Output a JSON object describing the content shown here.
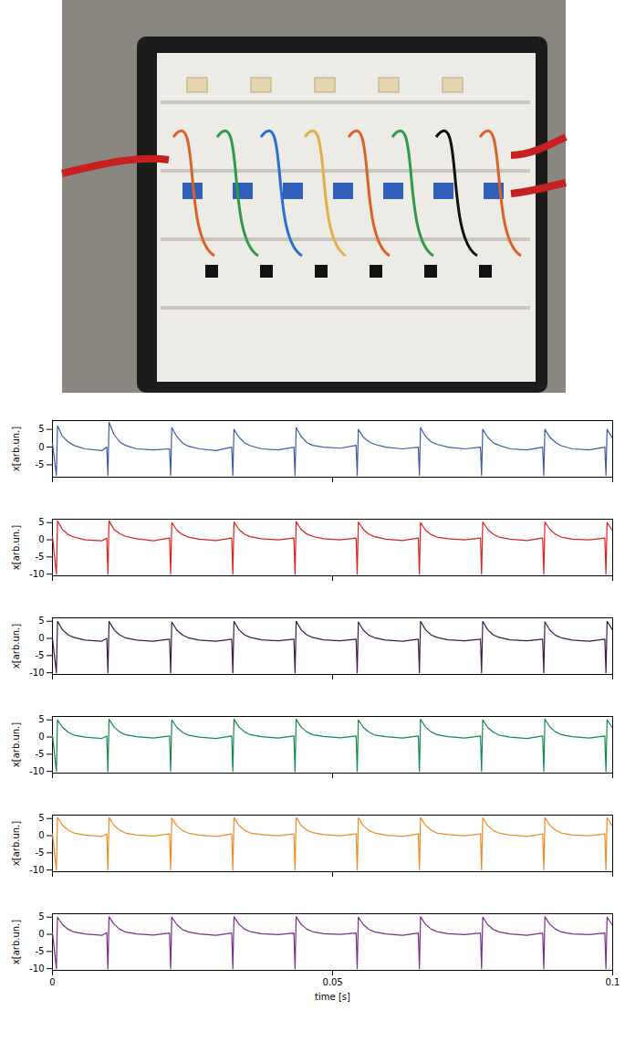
{
  "chart_data": [
    {
      "type": "line",
      "ylabel": "x[arb.un.]",
      "tick_labels": "y",
      "xlim": [
        0,
        0.1
      ],
      "xticks": [
        0,
        0.05,
        0.1
      ],
      "ylim": [
        -8.5,
        7.5
      ],
      "yticks": [
        -5,
        0,
        5
      ],
      "x": [
        0,
        0.0007,
        0.0009,
        0.0018,
        0.0028,
        0.0038,
        0.0058,
        0.0088,
        0.0097,
        0.0099,
        0.0101,
        0.011,
        0.012,
        0.013,
        0.015,
        0.018,
        0.0209,
        0.0211,
        0.0213,
        0.0222,
        0.0232,
        0.0242,
        0.0262,
        0.0292,
        0.032,
        0.0322,
        0.0324,
        0.0333,
        0.0343,
        0.0353,
        0.0373,
        0.0403,
        0.0431,
        0.0433,
        0.0435,
        0.0444,
        0.0454,
        0.0464,
        0.0484,
        0.0514,
        0.0542,
        0.0544,
        0.0546,
        0.0555,
        0.0565,
        0.0575,
        0.0595,
        0.0625,
        0.0653,
        0.0655,
        0.0657,
        0.0666,
        0.0676,
        0.0686,
        0.0706,
        0.0736,
        0.0764,
        0.0766,
        0.0768,
        0.0777,
        0.0787,
        0.0797,
        0.0817,
        0.0847,
        0.0875,
        0.0877,
        0.0879,
        0.0888,
        0.0898,
        0.0908,
        0.0928,
        0.0958,
        0.0986,
        0.0988,
        0.099,
        0.1
      ],
      "series": [
        {
          "color": "#3b5ba9",
          "values": [
            1,
            -8,
            6,
            3,
            1.5,
            0.5,
            -0.5,
            -1,
            0,
            -8,
            7,
            3.5,
            1.5,
            0.5,
            -0.5,
            -0.8,
            -0.5,
            -8,
            5.5,
            3,
            1.2,
            0.3,
            -0.5,
            -1,
            0,
            -8,
            5,
            2.8,
            1.2,
            0.4,
            -0.5,
            -0.8,
            0,
            -8,
            5.5,
            3,
            1.3,
            0.5,
            0,
            -0.3,
            0.5,
            -8,
            5,
            2.8,
            1.5,
            0.8,
            0,
            -0.5,
            0,
            -8,
            5.5,
            3,
            1.5,
            0.8,
            0,
            -0.5,
            0,
            -8,
            5,
            2.8,
            1.2,
            0.5,
            -0.5,
            -0.8,
            0,
            -8,
            5,
            2.8,
            1.3,
            0.4,
            -0.5,
            -0.8,
            0,
            -8,
            5,
            2.5
          ]
        }
      ]
    },
    {
      "type": "line",
      "ylabel": "x[arb.un.]",
      "tick_labels": "y",
      "xlim": [
        0,
        0.1
      ],
      "xticks": [
        0,
        0.05,
        0.1
      ],
      "ylim": [
        -10.5,
        6
      ],
      "yticks": [
        -10,
        -5,
        0,
        5
      ],
      "x": [
        0,
        0.0007,
        0.0009,
        0.0018,
        0.0028,
        0.0038,
        0.0058,
        0.0088,
        0.0097,
        0.0099,
        0.0101,
        0.011,
        0.012,
        0.013,
        0.015,
        0.018,
        0.0209,
        0.0211,
        0.0213,
        0.0222,
        0.0232,
        0.0242,
        0.0262,
        0.0292,
        0.032,
        0.0322,
        0.0324,
        0.0333,
        0.0343,
        0.0353,
        0.0373,
        0.0403,
        0.0431,
        0.0433,
        0.0435,
        0.0444,
        0.0454,
        0.0464,
        0.0484,
        0.0514,
        0.0542,
        0.0544,
        0.0546,
        0.0555,
        0.0565,
        0.0575,
        0.0595,
        0.0625,
        0.0653,
        0.0655,
        0.0657,
        0.0666,
        0.0676,
        0.0686,
        0.0706,
        0.0736,
        0.0764,
        0.0766,
        0.0768,
        0.0777,
        0.0787,
        0.0797,
        0.0817,
        0.0847,
        0.0875,
        0.0877,
        0.0879,
        0.0888,
        0.0898,
        0.0908,
        0.0928,
        0.0958,
        0.0986,
        0.0988,
        0.099,
        0.1
      ],
      "series": [
        {
          "color": "#e0201b",
          "values": [
            1,
            -10,
            5.5,
            3,
            1.5,
            0.8,
            0,
            -0.3,
            0.5,
            -10,
            5.5,
            3,
            1.8,
            1,
            0.3,
            -0.3,
            0.5,
            -10,
            5,
            2.8,
            1.5,
            0.8,
            0.2,
            -0.2,
            0.5,
            -10,
            5.2,
            3,
            1.6,
            0.9,
            0.3,
            0,
            0.5,
            -10,
            5.3,
            3,
            1.7,
            1,
            0.3,
            0,
            0.5,
            -10,
            5.2,
            3,
            1.6,
            0.9,
            0.2,
            -0.2,
            0.5,
            -10,
            5,
            2.8,
            1.5,
            0.8,
            0.3,
            0,
            0.5,
            -10,
            5.2,
            3,
            1.6,
            0.8,
            0.2,
            -0.2,
            0.5,
            -10,
            5.2,
            3,
            1.6,
            0.8,
            0.2,
            0,
            0.5,
            -10,
            5,
            2.6
          ]
        }
      ]
    },
    {
      "type": "line",
      "ylabel": "x[arb.un.]",
      "tick_labels": "y",
      "xlim": [
        0,
        0.1
      ],
      "xticks": [
        0,
        0.05,
        0.1
      ],
      "ylim": [
        -10.5,
        6
      ],
      "yticks": [
        -10,
        -5,
        0,
        5
      ],
      "x": [
        0,
        0.0007,
        0.0009,
        0.0018,
        0.0028,
        0.0038,
        0.0058,
        0.0088,
        0.0097,
        0.0099,
        0.0101,
        0.011,
        0.012,
        0.013,
        0.015,
        0.018,
        0.0209,
        0.0211,
        0.0213,
        0.0222,
        0.0232,
        0.0242,
        0.0262,
        0.0292,
        0.032,
        0.0322,
        0.0324,
        0.0333,
        0.0343,
        0.0353,
        0.0373,
        0.0403,
        0.0431,
        0.0433,
        0.0435,
        0.0444,
        0.0454,
        0.0464,
        0.0484,
        0.0514,
        0.0542,
        0.0544,
        0.0546,
        0.0555,
        0.0565,
        0.0575,
        0.0595,
        0.0625,
        0.0653,
        0.0655,
        0.0657,
        0.0666,
        0.0676,
        0.0686,
        0.0706,
        0.0736,
        0.0764,
        0.0766,
        0.0768,
        0.0777,
        0.0787,
        0.0797,
        0.0817,
        0.0847,
        0.0875,
        0.0877,
        0.0879,
        0.0888,
        0.0898,
        0.0908,
        0.0928,
        0.0958,
        0.0986,
        0.0988,
        0.099,
        0.1
      ],
      "series": [
        {
          "color": "#3d1a4a",
          "values": [
            0,
            -10,
            5,
            2.5,
            1,
            0.3,
            -0.5,
            -0.8,
            0,
            -10,
            5,
            2.5,
            1,
            0.2,
            -0.5,
            -0.8,
            -0.2,
            -10,
            4.8,
            2.4,
            1,
            0.2,
            -0.5,
            -0.8,
            -0.2,
            -10,
            5,
            2.5,
            1,
            0.3,
            -0.4,
            -0.7,
            -0.2,
            -10,
            5,
            2.5,
            1,
            0.3,
            -0.4,
            -0.7,
            -0.2,
            -10,
            4.8,
            2.4,
            0.9,
            0.2,
            -0.5,
            -0.8,
            -0.2,
            -10,
            5,
            2.5,
            1,
            0.3,
            -0.4,
            -0.7,
            -0.2,
            -10,
            5,
            2.5,
            1,
            0.3,
            -0.4,
            -0.7,
            -0.2,
            -10,
            4.8,
            2.4,
            0.9,
            0.2,
            -0.5,
            -0.8,
            -0.2,
            -10,
            5,
            2.4
          ]
        }
      ]
    },
    {
      "type": "line",
      "ylabel": "x[arb.un.]",
      "tick_labels": "y",
      "xlim": [
        0,
        0.1
      ],
      "xticks": [
        0,
        0.05,
        0.1
      ],
      "ylim": [
        -10.5,
        6
      ],
      "yticks": [
        -10,
        -5,
        0,
        5
      ],
      "x": [
        0,
        0.0007,
        0.0009,
        0.0018,
        0.0028,
        0.0038,
        0.0058,
        0.0088,
        0.0097,
        0.0099,
        0.0101,
        0.011,
        0.012,
        0.013,
        0.015,
        0.018,
        0.0209,
        0.0211,
        0.0213,
        0.0222,
        0.0232,
        0.0242,
        0.0262,
        0.0292,
        0.032,
        0.0322,
        0.0324,
        0.0333,
        0.0343,
        0.0353,
        0.0373,
        0.0403,
        0.0431,
        0.0433,
        0.0435,
        0.0444,
        0.0454,
        0.0464,
        0.0484,
        0.0514,
        0.0542,
        0.0544,
        0.0546,
        0.0555,
        0.0565,
        0.0575,
        0.0595,
        0.0625,
        0.0653,
        0.0655,
        0.0657,
        0.0666,
        0.0676,
        0.0686,
        0.0706,
        0.0736,
        0.0764,
        0.0766,
        0.0768,
        0.0777,
        0.0787,
        0.0797,
        0.0817,
        0.0847,
        0.0875,
        0.0877,
        0.0879,
        0.0888,
        0.0898,
        0.0908,
        0.0928,
        0.0958,
        0.0986,
        0.0988,
        0.099,
        0.1
      ],
      "series": [
        {
          "color": "#138a4a",
          "values": [
            0.5,
            -10,
            5,
            2.8,
            1.4,
            0.6,
            0,
            -0.4,
            0.3,
            -10,
            5.2,
            2.9,
            1.5,
            0.7,
            0.1,
            -0.3,
            0.3,
            -10,
            5,
            2.8,
            1.4,
            0.6,
            0,
            -0.4,
            0.3,
            -10,
            5.2,
            2.9,
            1.5,
            0.7,
            0.1,
            -0.3,
            0.3,
            -10,
            5.2,
            2.9,
            1.5,
            0.7,
            0.2,
            -0.2,
            0.3,
            -10,
            5,
            2.8,
            1.4,
            0.6,
            0.1,
            -0.3,
            0.3,
            -10,
            5.2,
            2.9,
            1.5,
            0.7,
            0.1,
            -0.3,
            0.3,
            -10,
            5,
            2.8,
            1.4,
            0.6,
            0,
            -0.4,
            0.3,
            -10,
            5.2,
            2.9,
            1.5,
            0.7,
            0.1,
            -0.3,
            0.3,
            -10,
            5,
            2.6
          ]
        }
      ]
    },
    {
      "type": "line",
      "ylabel": "x[arb.un.]",
      "tick_labels": "y",
      "xlim": [
        0,
        0.1
      ],
      "xticks": [
        0,
        0.05,
        0.1
      ],
      "ylim": [
        -10.5,
        6
      ],
      "yticks": [
        -10,
        -5,
        0,
        5
      ],
      "x": [
        0,
        0.0007,
        0.0009,
        0.0018,
        0.0028,
        0.0038,
        0.0058,
        0.0088,
        0.0097,
        0.0099,
        0.0101,
        0.011,
        0.012,
        0.013,
        0.015,
        0.018,
        0.0209,
        0.0211,
        0.0213,
        0.0222,
        0.0232,
        0.0242,
        0.0262,
        0.0292,
        0.032,
        0.0322,
        0.0324,
        0.0333,
        0.0343,
        0.0353,
        0.0373,
        0.0403,
        0.0431,
        0.0433,
        0.0435,
        0.0444,
        0.0454,
        0.0464,
        0.0484,
        0.0514,
        0.0542,
        0.0544,
        0.0546,
        0.0555,
        0.0565,
        0.0575,
        0.0595,
        0.0625,
        0.0653,
        0.0655,
        0.0657,
        0.0666,
        0.0676,
        0.0686,
        0.0706,
        0.0736,
        0.0764,
        0.0766,
        0.0768,
        0.0777,
        0.0787,
        0.0797,
        0.0817,
        0.0847,
        0.0875,
        0.0877,
        0.0879,
        0.0888,
        0.0898,
        0.0908,
        0.0928,
        0.0958,
        0.0986,
        0.0988,
        0.099,
        0.1
      ],
      "series": [
        {
          "color": "#f08a24",
          "values": [
            0.5,
            -10,
            5.3,
            3,
            1.6,
            0.8,
            0.2,
            -0.2,
            0.5,
            -10,
            5.3,
            3,
            1.6,
            0.8,
            0.2,
            -0.1,
            0.5,
            -10,
            5.2,
            2.9,
            1.5,
            0.8,
            0.2,
            -0.2,
            0.5,
            -10,
            5.3,
            3,
            1.6,
            0.8,
            0.3,
            0,
            0.5,
            -10,
            5.3,
            3,
            1.6,
            0.9,
            0.3,
            0,
            0.5,
            -10,
            5.2,
            2.9,
            1.5,
            0.8,
            0.2,
            -0.2,
            0.5,
            -10,
            5.3,
            3,
            1.6,
            0.8,
            0.3,
            0,
            0.5,
            -10,
            5.2,
            2.9,
            1.5,
            0.8,
            0.2,
            -0.2,
            0.5,
            -10,
            5.3,
            3,
            1.6,
            0.8,
            0.2,
            0,
            0.5,
            -10,
            5.2,
            2.7
          ]
        }
      ]
    },
    {
      "type": "line",
      "ylabel": "x[arb.un.]",
      "xlabel": "time [s]",
      "xlim": [
        0,
        0.1
      ],
      "xticks": [
        0,
        0.05,
        0.1
      ],
      "ylim": [
        -10.5,
        6
      ],
      "yticks": [
        -10,
        -5,
        0,
        5
      ],
      "x": [
        0,
        0.0007,
        0.0009,
        0.0018,
        0.0028,
        0.0038,
        0.0058,
        0.0088,
        0.0097,
        0.0099,
        0.0101,
        0.011,
        0.012,
        0.013,
        0.015,
        0.018,
        0.0209,
        0.0211,
        0.0213,
        0.0222,
        0.0232,
        0.0242,
        0.0262,
        0.0292,
        0.032,
        0.0322,
        0.0324,
        0.0333,
        0.0343,
        0.0353,
        0.0373,
        0.0403,
        0.0431,
        0.0433,
        0.0435,
        0.0444,
        0.0454,
        0.0464,
        0.0484,
        0.0514,
        0.0542,
        0.0544,
        0.0546,
        0.0555,
        0.0565,
        0.0575,
        0.0595,
        0.0625,
        0.0653,
        0.0655,
        0.0657,
        0.0666,
        0.0676,
        0.0686,
        0.0706,
        0.0736,
        0.0764,
        0.0766,
        0.0768,
        0.0777,
        0.0787,
        0.0797,
        0.0817,
        0.0847,
        0.0875,
        0.0877,
        0.0879,
        0.0888,
        0.0898,
        0.0908,
        0.0928,
        0.0958,
        0.0986,
        0.0988,
        0.099,
        0.1
      ],
      "series": [
        {
          "color": "#7b2d8e",
          "values": [
            0.5,
            -10,
            5,
            2.8,
            1.5,
            0.7,
            0.1,
            -0.3,
            0.5,
            -10,
            5.1,
            2.9,
            1.5,
            0.7,
            0.1,
            -0.2,
            0.4,
            -10,
            5,
            2.8,
            1.4,
            0.7,
            0.1,
            -0.3,
            0.4,
            -10,
            5.1,
            2.9,
            1.5,
            0.8,
            0.2,
            -0.1,
            0.4,
            -10,
            5.1,
            2.9,
            1.5,
            0.8,
            0.2,
            0,
            0.4,
            -10,
            5,
            2.8,
            1.4,
            0.7,
            0.1,
            -0.3,
            0.4,
            -10,
            5.1,
            2.9,
            1.5,
            0.8,
            0.2,
            -0.1,
            0.4,
            -10,
            5,
            2.8,
            1.4,
            0.7,
            0.1,
            -0.3,
            0.4,
            -10,
            5.1,
            2.9,
            1.5,
            0.7,
            0.1,
            -0.1,
            0.4,
            -10,
            5,
            2.6
          ]
        }
      ]
    }
  ]
}
